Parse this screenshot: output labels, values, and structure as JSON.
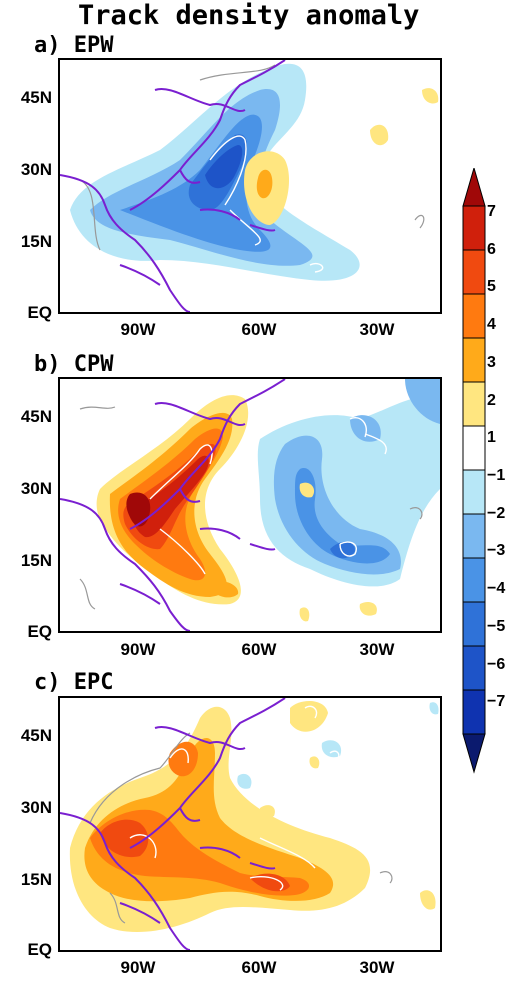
{
  "title": "Track density anomaly",
  "panels": [
    {
      "label": "a) EPW"
    },
    {
      "label": "b) CPW"
    },
    {
      "label": "c) EPC"
    }
  ],
  "lat_labels": [
    "45N",
    "30N",
    "15N",
    "EQ"
  ],
  "lon_labels": [
    "90W",
    "60W",
    "30W"
  ],
  "colorbar": {
    "labels": [
      "7",
      "6",
      "5",
      "4",
      "3",
      "2",
      "1",
      "−1",
      "−2",
      "−3",
      "−4",
      "−5",
      "−6",
      "−7"
    ],
    "colors": [
      "#0b1a6e",
      "#0f33b0",
      "#1e54c8",
      "#2f72d8",
      "#4a93e6",
      "#7ab8f0",
      "#b7e7f7",
      "#ffffff",
      "#ffe680",
      "#ffaa1a",
      "#ff7a10",
      "#f04a10",
      "#d0200c",
      "#a00808"
    ]
  },
  "colors": {
    "coast": "#7a1fd0",
    "contour_white": "#ffffff",
    "contour_gray": "#999999"
  }
}
